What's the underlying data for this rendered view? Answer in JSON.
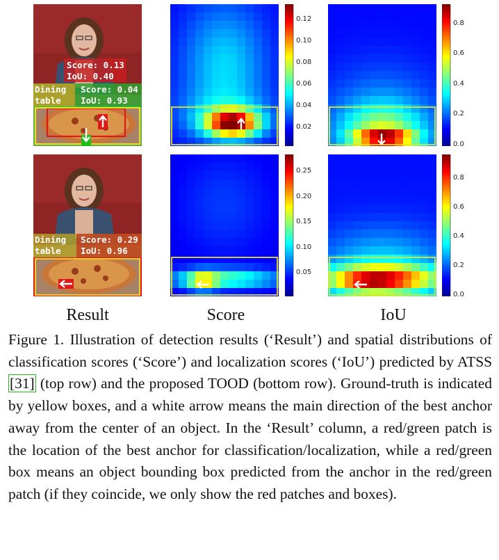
{
  "columns": [
    "Result",
    "Score",
    "IoU"
  ],
  "rows": [
    {
      "name": "ATSS (top row)",
      "overlays": [
        {
          "text": "Score: 0.13",
          "text2": "IoU: 0.40"
        },
        {
          "text": "Dining",
          "text2": "table"
        },
        {
          "text": "Score: 0.04",
          "text2": "IoU: 0.93"
        }
      ],
      "score_ticks": [
        "0.12",
        "0.10",
        "0.08",
        "0.06",
        "0.04",
        "0.02"
      ],
      "iou_ticks": [
        "0.8",
        "0.6",
        "0.4",
        "0.2",
        "0.0"
      ],
      "score_max": 0.135,
      "iou_max": 0.92
    },
    {
      "name": "TOOD (bottom row)",
      "overlays": [
        {
          "text": "Dining",
          "text2": "table"
        },
        {
          "text": "Score: 0.29",
          "text2": "IoU: 0.96"
        }
      ],
      "score_ticks": [
        "0.25",
        "0.20",
        "0.15",
        "0.10",
        "0.05"
      ],
      "iou_ticks": [
        "0.8",
        "0.6",
        "0.4",
        "0.2",
        "0.0"
      ],
      "score_max": 0.28,
      "iou_max": 0.92
    }
  ],
  "caption": {
    "p1": "Figure 1. Illustration of detection results (‘Result’) and spatial distributions of classification scores (‘Score’) and localization scores (‘IoU’) predicted by ATSS ",
    "ref": "[31]",
    "p2": " (top row) and the proposed TOOD (bottom row). Ground-truth is indicated by yellow boxes, and a white arrow means the main direction of the best anchor away from the center of an object.  In the ‘Result’ column, a red/green patch is the location of the best anchor for classification/localization, while a red/green box means an object bounding box predicted from the anchor in the red/green patch (if they coincide, we only show the red patches and boxes)."
  }
}
